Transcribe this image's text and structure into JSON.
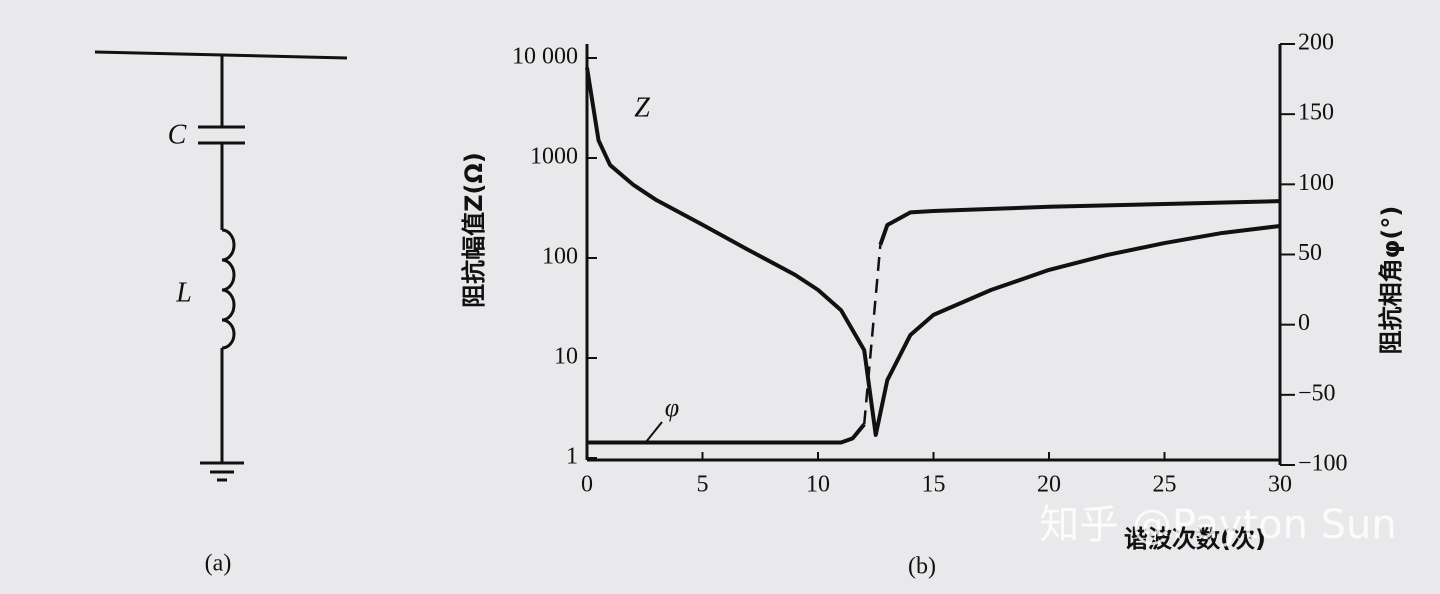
{
  "diagram": {
    "c_label": "C",
    "l_label": "L",
    "caption": "(a)"
  },
  "chart_data": {
    "type": "line",
    "caption": "(b)",
    "y_label": "阻抗幅值Z(Ω)",
    "y2_label": "阻抗相角φ(°)",
    "x_label": "谐波次数(次)",
    "xlim": [
      0,
      30
    ],
    "xticks": [
      0,
      5,
      10,
      15,
      20,
      25,
      30
    ],
    "ylim": [
      1,
      10000
    ],
    "ylog": true,
    "yticks": [
      1,
      10,
      100,
      1000,
      {
        "value": 10000,
        "label": "10 000"
      }
    ],
    "y2lim": [
      -100,
      200
    ],
    "y2ticks": [
      {
        "value": -100,
        "label": "−100"
      },
      {
        "value": -50,
        "label": "−50"
      },
      0,
      50,
      100,
      150,
      200
    ],
    "series": [
      {
        "name": "Z",
        "color": "#111111",
        "x": [
          0,
          0.5,
          1,
          2,
          3,
          5,
          7,
          9,
          10,
          11,
          12,
          12.5,
          13,
          14,
          15,
          17.5,
          20,
          22.5,
          25,
          27.5,
          30
        ],
        "values": [
          8000,
          1500,
          850,
          540,
          380,
          215,
          120,
          68,
          48,
          30,
          12,
          1.7,
          6,
          17,
          27,
          48,
          76,
          107,
          141,
          178,
          209
        ]
      },
      {
        "name": "φ",
        "color": "#111111",
        "axis": "y2",
        "x": [
          0,
          5,
          10,
          11,
          11.5,
          12,
          12.4,
          12.7,
          13,
          14,
          15,
          20,
          25,
          30
        ],
        "values": [
          -84,
          -84,
          -84,
          -84,
          -81,
          -71,
          null,
          57,
          71,
          80,
          81,
          84,
          86,
          88
        ]
      }
    ]
  },
  "watermark": "知乎 @Payton Sun"
}
